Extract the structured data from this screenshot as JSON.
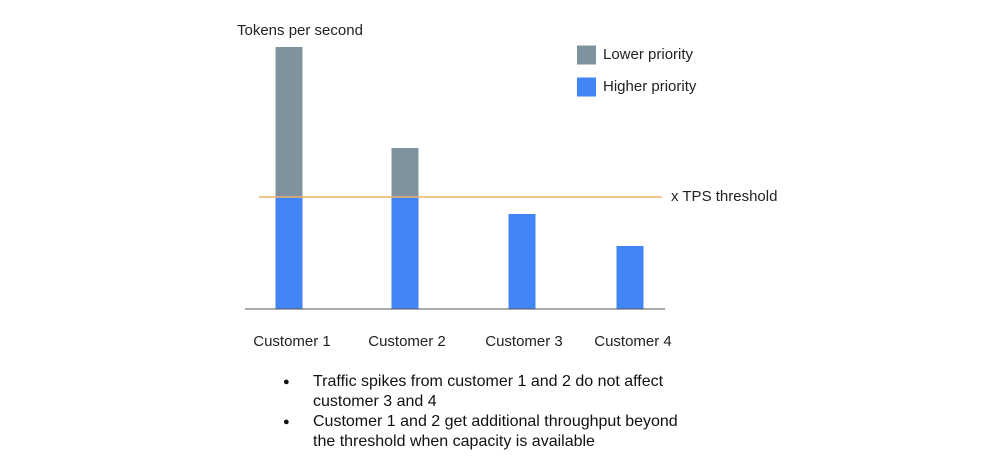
{
  "chart_data": {
    "type": "stacked_bar",
    "title": "Tokens per second",
    "categories": [
      "Customer 1",
      "Customer 2",
      "Customer 3",
      "Customer 4"
    ],
    "series": [
      {
        "name": "Higher priority",
        "color": "#4285f4",
        "values": [
          112,
          112,
          95,
          63
        ]
      },
      {
        "name": "Lower priority",
        "color": "#7f939e",
        "values": [
          150,
          49,
          null,
          null
        ]
      }
    ],
    "ylim": [
      0,
      270
    ],
    "threshold": {
      "value": 112,
      "label": "x TPS threshold",
      "color": "#f4b26a"
    },
    "notes": [
      "Traffic spikes from customer 1 and 2 do not affect customer 3 and 4",
      "Customer 1 and 2 get additional throughput beyond the threshold when capacity is available"
    ]
  }
}
